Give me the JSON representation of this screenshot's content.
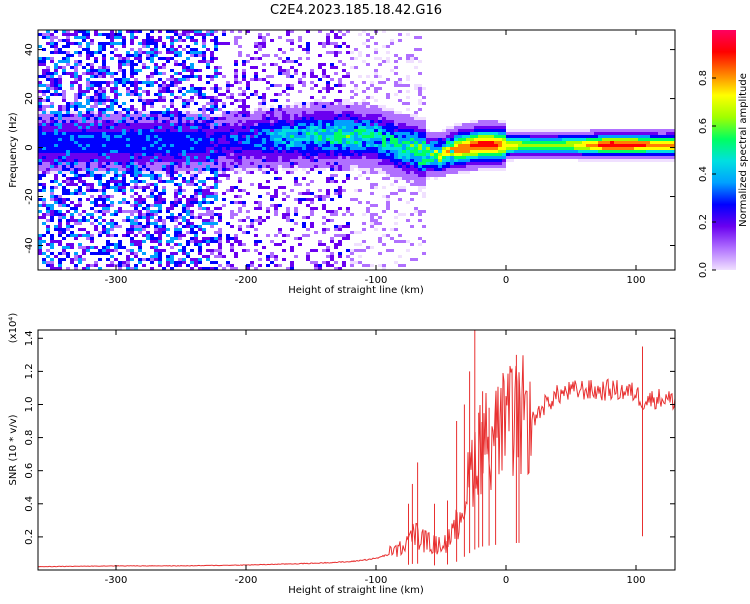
{
  "figure_title": "C2E4.2023.185.18.42.G16",
  "chart_data": [
    {
      "type": "heatmap",
      "xlabel": "Height of straight line (km)",
      "ylabel": "Frequency (Hz)",
      "xlim": [
        -360,
        130
      ],
      "ylim": [
        -50,
        48
      ],
      "x_ticks": [
        -300,
        -200,
        -100,
        0,
        100
      ],
      "y_ticks": [
        -40,
        -20,
        0,
        20,
        40
      ],
      "colorbar": {
        "label": "Normalized spectral amplitude",
        "range": [
          0.0,
          1.0
        ],
        "ticks": [
          0.0,
          0.2,
          0.4,
          0.6,
          0.8
        ],
        "colormap": [
          "#f0e0ff",
          "#b070ff",
          "#6a00f0",
          "#0000ff",
          "#00a0ff",
          "#00e0e0",
          "#00ff60",
          "#a0ff00",
          "#ffff00",
          "#ff8000",
          "#ff0000",
          "#ff0060"
        ]
      },
      "ridge_profile": {
        "x": [
          -230,
          -200,
          -170,
          -140,
          -120,
          -100,
          -85,
          -70,
          -60,
          -50,
          -40,
          -30,
          -20,
          -10,
          0,
          20,
          40,
          60,
          80,
          100,
          120,
          130
        ],
        "center_hz": [
          2,
          3,
          4,
          5,
          5,
          4,
          1,
          -1,
          -3,
          -3,
          -1,
          0,
          1,
          1,
          1,
          1,
          1,
          1,
          1,
          1,
          1,
          1
        ],
        "peak_amplitude": [
          0.3,
          0.35,
          0.45,
          0.55,
          0.55,
          0.5,
          0.55,
          0.6,
          0.7,
          0.75,
          0.8,
          0.85,
          0.9,
          0.9,
          0.75,
          0.6,
          0.6,
          0.75,
          0.95,
          0.9,
          0.8,
          0.85
        ]
      }
    },
    {
      "type": "line",
      "xlabel": "Height of straight line (km)",
      "ylabel": "SNR (10 * v/v)",
      "y_scale_note": "(x10⁴)",
      "xlim": [
        -360,
        130
      ],
      "ylim": [
        0,
        1.45
      ],
      "x_ticks": [
        -300,
        -200,
        -100,
        0,
        100
      ],
      "y_ticks": [
        0.2,
        0.4,
        0.6,
        0.8,
        1.0,
        1.2,
        1.4
      ],
      "series": [
        {
          "color": "#e83030",
          "x": [
            -360,
            -300,
            -250,
            -200,
            -150,
            -120,
            -100,
            -80,
            -70,
            -60,
            -50,
            -40,
            -30,
            -25,
            -20,
            -10,
            0,
            10,
            20,
            30,
            40,
            50,
            60,
            70,
            80,
            90,
            100,
            105,
            110,
            120,
            130
          ],
          "y": [
            0.02,
            0.025,
            0.025,
            0.03,
            0.04,
            0.05,
            0.07,
            0.12,
            0.2,
            0.15,
            0.13,
            0.2,
            0.45,
            0.6,
            0.7,
            0.75,
            0.8,
            0.82,
            0.9,
            1.0,
            1.06,
            1.08,
            1.09,
            1.08,
            1.09,
            1.08,
            1.07,
            1.02,
            1.03,
            1.04,
            1.02
          ]
        }
      ],
      "spikes": {
        "x": [
          -75,
          -72,
          -68,
          -55,
          -45,
          -38,
          -32,
          -28,
          -24,
          -21,
          -18,
          -13,
          -8,
          8,
          10,
          105
        ],
        "y": [
          0.4,
          0.52,
          0.65,
          0.4,
          0.42,
          0.9,
          1.0,
          1.2,
          1.5,
          0.95,
          1.08,
          0.98,
          1.0,
          1.3,
          1.18,
          1.35
        ]
      }
    }
  ]
}
